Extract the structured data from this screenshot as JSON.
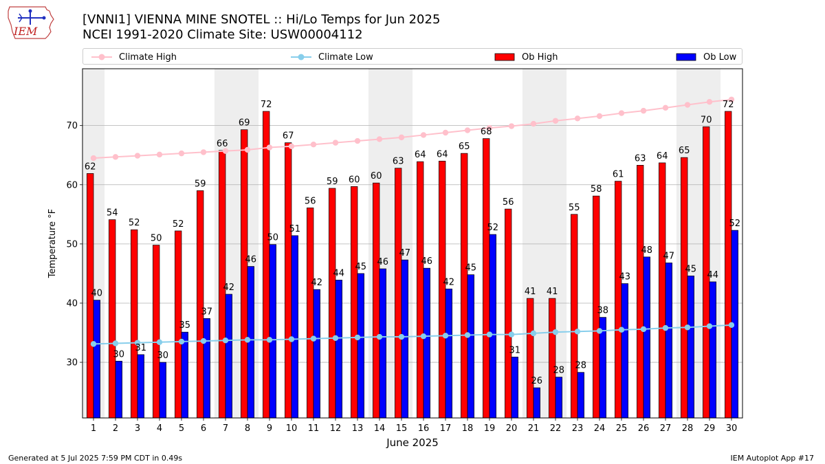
{
  "header": {
    "logo_text": "IEM",
    "title_line1": "[VNNI1] VIENNA MINE SNOTEL :: Hi/Lo Temps for Jun 2025",
    "title_line2": "NCEI 1991-2020 Climate Site: USW00004112"
  },
  "footer": {
    "left": "Generated at 5 Jul 2025 7:59 PM CDT in 0.49s",
    "right": "IEM Autoplot App #17"
  },
  "colors": {
    "ob_high": "#ff0000",
    "ob_low": "#0000ff",
    "climate_high": "#ffc0cb",
    "climate_low": "#87ceeb",
    "weekend_shade": "#eeeeee",
    "grid": "#b0b0b0"
  },
  "chart_data": {
    "type": "bar",
    "xlabel": "June 2025",
    "ylabel": "Temperature °F",
    "ylim": [
      20.6,
      79.6
    ],
    "yticks": [
      30,
      40,
      50,
      60,
      70
    ],
    "grid": "horizontal",
    "legend_placement": "top",
    "categories": [
      "1",
      "2",
      "3",
      "4",
      "5",
      "6",
      "7",
      "8",
      "9",
      "10",
      "11",
      "12",
      "13",
      "14",
      "15",
      "16",
      "17",
      "18",
      "19",
      "20",
      "21",
      "22",
      "23",
      "24",
      "25",
      "26",
      "27",
      "28",
      "29",
      "30"
    ],
    "weekend_shaded_days": [
      1,
      7,
      8,
      14,
      15,
      21,
      22,
      28,
      29
    ],
    "series": [
      {
        "name": "Climate High",
        "kind": "line",
        "values": [
          64.5,
          64.7,
          64.9,
          65.1,
          65.3,
          65.5,
          65.7,
          65.9,
          66.3,
          66.5,
          66.8,
          67.1,
          67.4,
          67.7,
          68.0,
          68.4,
          68.8,
          69.2,
          69.6,
          69.9,
          70.3,
          70.8,
          71.2,
          71.6,
          72.1,
          72.5,
          73.0,
          73.5,
          74.0,
          74.4
        ]
      },
      {
        "name": "Climate Low",
        "kind": "line",
        "values": [
          33.1,
          33.2,
          33.3,
          33.4,
          33.5,
          33.6,
          33.7,
          33.8,
          33.8,
          33.9,
          34.0,
          34.1,
          34.2,
          34.3,
          34.3,
          34.4,
          34.5,
          34.6,
          34.7,
          34.7,
          34.9,
          35.1,
          35.2,
          35.3,
          35.5,
          35.6,
          35.8,
          35.9,
          36.1,
          36.3
        ]
      },
      {
        "name": "Ob High",
        "kind": "bar",
        "values": [
          61.9,
          54.1,
          52.4,
          49.8,
          52.2,
          59.0,
          65.8,
          69.3,
          72.4,
          67.1,
          56.1,
          59.4,
          59.7,
          60.3,
          62.8,
          63.9,
          64.0,
          65.3,
          67.8,
          55.9,
          40.8,
          40.8,
          55.0,
          58.1,
          60.6,
          63.3,
          63.7,
          64.6,
          69.8,
          72.4
        ],
        "labels": [
          "62",
          "54",
          "52",
          "50",
          "52",
          "59",
          "66",
          "69",
          "72",
          "67",
          "56",
          "59",
          "60",
          "60",
          "63",
          "64",
          "64",
          "65",
          "68",
          "56",
          "41",
          "41",
          "55",
          "58",
          "61",
          "63",
          "64",
          "65",
          "70",
          "72"
        ]
      },
      {
        "name": "Ob Low",
        "kind": "bar",
        "values": [
          40.5,
          30.2,
          31.3,
          30.0,
          35.1,
          37.4,
          41.5,
          46.2,
          49.9,
          51.4,
          42.3,
          43.9,
          45.0,
          45.8,
          47.3,
          45.9,
          42.4,
          44.8,
          51.6,
          30.9,
          25.7,
          27.5,
          28.3,
          37.6,
          43.3,
          47.8,
          46.8,
          44.6,
          43.6,
          52.3
        ],
        "labels": [
          "40",
          "30",
          "31",
          "30",
          "35",
          "37",
          "42",
          "46",
          "50",
          "51",
          "42",
          "44",
          "45",
          "46",
          "47",
          "46",
          "42",
          "45",
          "52",
          "31",
          "26",
          "28",
          "28",
          "38",
          "43",
          "48",
          "47",
          "45",
          "44",
          "52"
        ]
      }
    ]
  }
}
